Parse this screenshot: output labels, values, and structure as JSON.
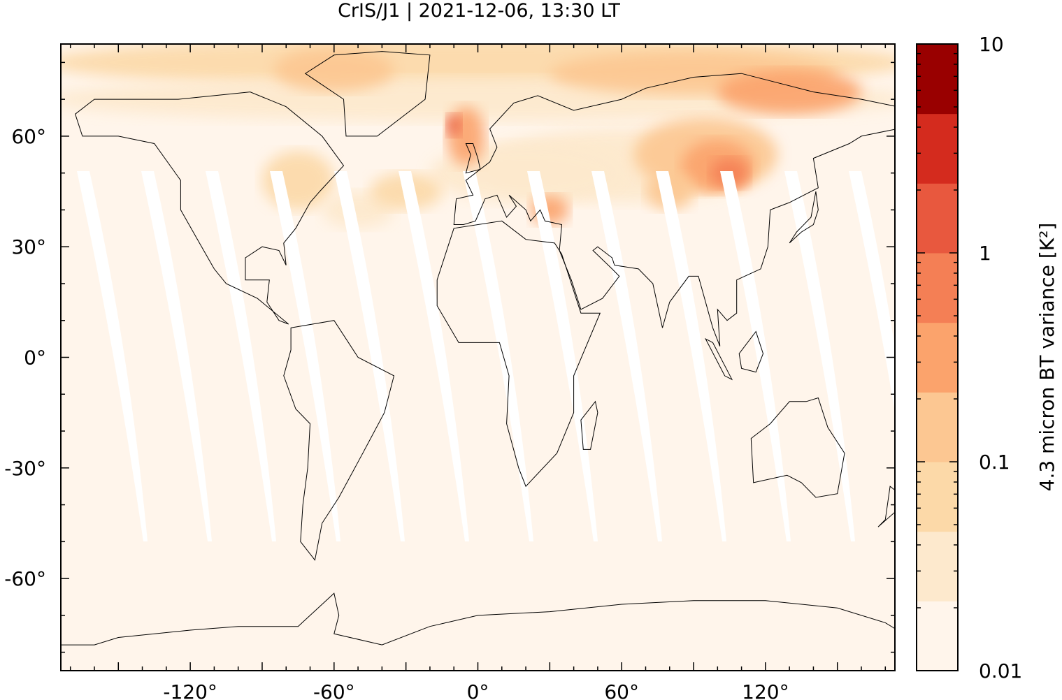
{
  "title": "CrIS/J1 | 2021-12-06, 13:30 LT",
  "map": {
    "projection": "equirectangular",
    "lon_range": [
      -174,
      174
    ],
    "lat_range": [
      -85,
      85
    ],
    "x_tick_labels": [
      "-120°",
      "-60°",
      "0°",
      "60°",
      "120°"
    ],
    "x_tick_values": [
      -120,
      -60,
      0,
      60,
      120
    ],
    "y_tick_labels": [
      "60°",
      "30°",
      "0°",
      "-30°",
      "-60°"
    ],
    "y_tick_values": [
      60,
      30,
      0,
      -30,
      -60
    ],
    "background_color": "#fff5eb",
    "coastline_color": "#000000",
    "swath_gap_color": "#ffffff"
  },
  "colorbar": {
    "label": "4.3 micron BT variance [K²]",
    "scale": "log",
    "range": [
      0.01,
      10
    ],
    "tick_labels": [
      "10",
      "1",
      "0.1",
      "0.01"
    ],
    "tick_values": [
      10,
      1,
      0.1,
      0.01
    ],
    "colors": [
      "#fff5eb",
      "#fde9cd",
      "#fcd9a8",
      "#fcc792",
      "#fba36c",
      "#f47f55",
      "#e8583e",
      "#d42b1e",
      "#990000"
    ]
  }
}
